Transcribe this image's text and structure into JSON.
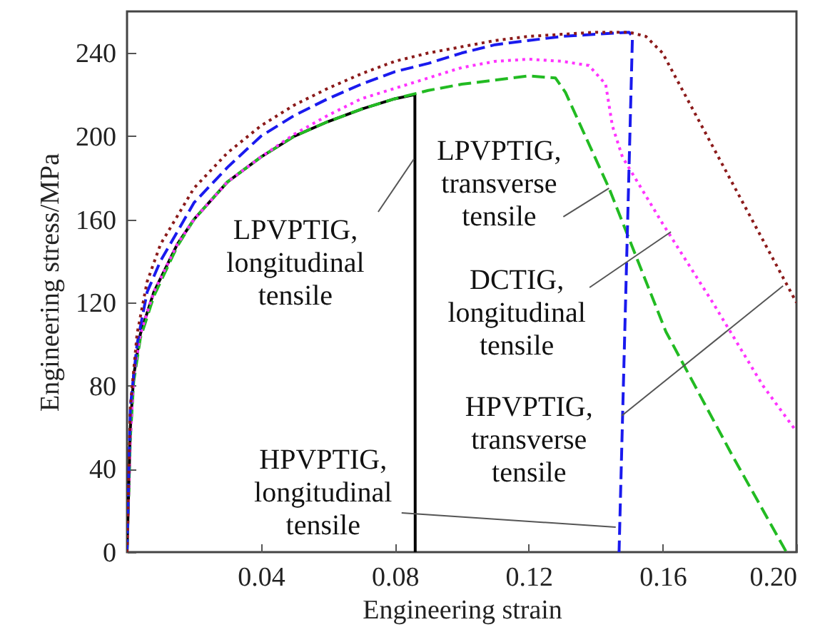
{
  "chart_data": {
    "type": "line",
    "xlabel": "Engineering strain",
    "ylabel": "Engineering stress/MPa",
    "xlim": [
      0,
      0.2
    ],
    "ylim": [
      0,
      260
    ],
    "xticks": [
      0.04,
      0.08,
      0.12,
      0.16,
      {
        "value": 0.2,
        "label": "0.20"
      }
    ],
    "yticks": [
      0,
      40,
      80,
      120,
      160,
      200,
      240
    ],
    "grid": false,
    "marker": "none",
    "series": [
      {
        "color": "#000000",
        "line_style": "solid",
        "x": [
          0,
          0.001,
          0.002,
          0.004,
          0.008,
          0.015,
          0.02,
          0.03,
          0.04,
          0.05,
          0.06,
          0.07,
          0.08,
          0.086,
          0.0861
        ],
        "values": [
          0,
          60,
          85,
          105,
          125,
          148,
          160,
          178,
          190,
          200,
          207,
          213,
          218,
          220,
          0
        ]
      },
      {
        "color": "#22bb22",
        "line_style": "dashed",
        "x": [
          0,
          0.001,
          0.002,
          0.004,
          0.008,
          0.015,
          0.02,
          0.03,
          0.04,
          0.05,
          0.06,
          0.07,
          0.08,
          0.09,
          0.1,
          0.11,
          0.12,
          0.128,
          0.131,
          0.144,
          0.161,
          0.181,
          0.197
        ],
        "values": [
          0,
          55,
          82,
          103,
          123,
          147,
          160,
          178,
          190,
          200,
          207,
          213,
          218,
          222,
          225,
          227,
          229,
          228,
          221,
          175,
          106,
          46,
          0
        ]
      },
      {
        "color": "#ff33ff",
        "line_style": "dotted",
        "x": [
          0,
          0.001,
          0.002,
          0.004,
          0.008,
          0.015,
          0.02,
          0.03,
          0.04,
          0.05,
          0.06,
          0.07,
          0.08,
          0.09,
          0.1,
          0.11,
          0.12,
          0.13,
          0.138,
          0.143,
          0.145,
          0.148,
          0.16,
          0.175,
          0.19,
          0.2
        ],
        "values": [
          0,
          55,
          85,
          105,
          125,
          148,
          160,
          178,
          190,
          201,
          210,
          218,
          223,
          228,
          233,
          236,
          237,
          236,
          234,
          225,
          205,
          190,
          158,
          120,
          80,
          58
        ]
      },
      {
        "color": "#1a1aee",
        "line_style": "dashed",
        "x": [
          0,
          0.001,
          0.003,
          0.006,
          0.01,
          0.02,
          0.03,
          0.04,
          0.05,
          0.06,
          0.07,
          0.08,
          0.09,
          0.1,
          0.11,
          0.12,
          0.13,
          0.14,
          0.15,
          0.151,
          0.147
        ],
        "values": [
          0,
          70,
          100,
          125,
          140,
          168,
          185,
          200,
          210,
          218,
          225,
          231,
          235,
          240,
          244,
          246,
          248,
          249,
          250,
          248,
          0
        ]
      },
      {
        "color": "#8b1a1a",
        "line_style": "dotted",
        "x": [
          0,
          0.001,
          0.003,
          0.006,
          0.01,
          0.02,
          0.03,
          0.04,
          0.05,
          0.06,
          0.07,
          0.08,
          0.09,
          0.1,
          0.11,
          0.12,
          0.13,
          0.14,
          0.15,
          0.155,
          0.16,
          0.17,
          0.18,
          0.19,
          0.2
        ],
        "values": [
          0,
          70,
          105,
          130,
          148,
          175,
          192,
          205,
          215,
          223,
          230,
          236,
          240,
          243,
          246,
          248,
          249,
          250,
          250,
          248,
          240,
          210,
          180,
          150,
          120
        ]
      }
    ],
    "annotations": [
      {
        "text": "LPVPTIG, longitudinal tensile",
        "x": 0.0857,
        "y": 189
      },
      {
        "text": "LPVPTIG, transverse tensile",
        "x": 0.144,
        "y": 175
      },
      {
        "text": "DCTIG, longitudinal tensile",
        "x": 0.1625,
        "y": 154
      },
      {
        "text": "HPVPTIG, transverse tensile",
        "x": 0.196,
        "y": 128
      },
      {
        "text": "HPVPTIG, longitudinal tensile",
        "x": 0.146,
        "y": 12
      }
    ]
  }
}
